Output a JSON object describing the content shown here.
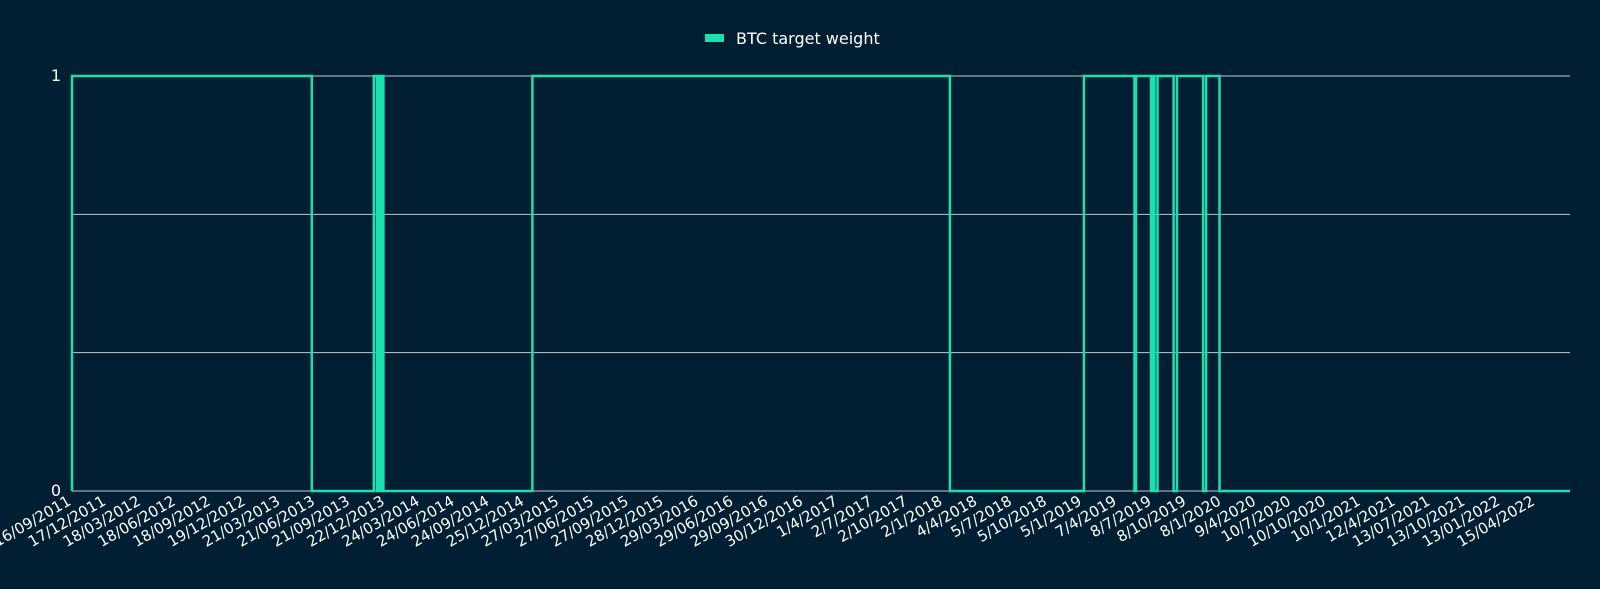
{
  "chart_data": {
    "type": "line",
    "legend": {
      "position": "top-center"
    },
    "grid": true,
    "colors": {
      "background": "#011e33",
      "series": "#1de0b0",
      "grid": "#c8c8c8",
      "text": "#ffffff"
    },
    "ylim": [
      0,
      1
    ],
    "yticks": [
      {
        "value": 1,
        "label": "1"
      },
      {
        "value": 0,
        "label": "0"
      }
    ],
    "ygrid": [
      0,
      0.3333,
      0.6667,
      1
    ],
    "x_tick_labels": [
      "16/09/2011",
      "17/12/2011",
      "18/03/2012",
      "18/06/2012",
      "18/09/2012",
      "19/12/2012",
      "21/03/2013",
      "21/06/2013",
      "21/09/2013",
      "22/12/2013",
      "24/03/2014",
      "24/06/2014",
      "24/09/2014",
      "25/12/2014",
      "27/03/2015",
      "27/06/2015",
      "27/09/2015",
      "28/12/2015",
      "29/03/2016",
      "29/06/2016",
      "29/09/2016",
      "30/12/2016",
      "1/4/2017",
      "2/7/2017",
      "2/10/2017",
      "2/1/2018",
      "4/4/2018",
      "5/7/2018",
      "5/10/2018",
      "5/1/2019",
      "7/4/2019",
      "8/7/2019",
      "8/10/2019",
      "8/1/2020",
      "9/4/2020",
      "10/7/2020",
      "10/10/2020",
      "10/1/2021",
      "12/4/2021",
      "13/07/2021",
      "13/10/2021",
      "13/01/2022",
      "15/04/2022"
    ],
    "series": [
      {
        "name": "BTC target weight",
        "x": [
          "16/09/2011",
          "03/06/2013",
          "12/11/2013",
          "20/11/2013",
          "26/11/2013",
          "29/11/2013",
          "05/12/2013",
          "07/12/2013",
          "31/12/2014",
          "25/12/2017",
          "10/12/2018",
          "21/04/2019",
          "25/04/2019",
          "03/06/2019",
          "08/06/2019",
          "12/06/2019",
          "20/06/2019",
          "01/08/2019",
          "10/08/2019",
          "17/10/2019",
          "25/10/2019",
          "29/11/2019",
          "17/04/2021",
          "01/06/2022"
        ],
        "values": [
          1,
          0,
          1,
          0,
          1,
          0,
          1,
          0,
          1,
          0,
          1,
          0,
          1,
          0,
          1,
          0,
          1,
          0,
          1,
          0,
          1,
          0,
          0,
          0
        ]
      }
    ]
  }
}
